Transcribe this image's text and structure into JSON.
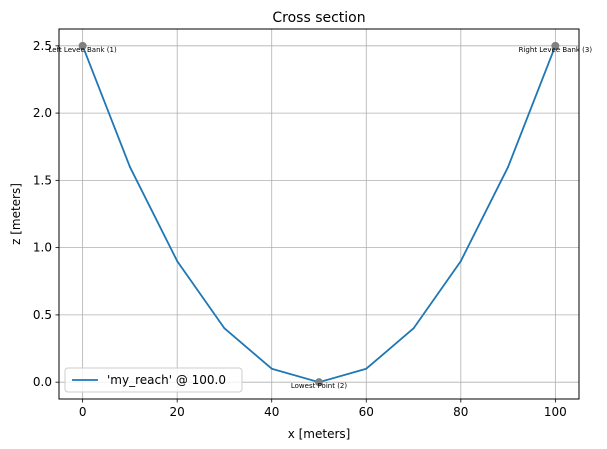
{
  "chart_data": {
    "type": "line",
    "title": "Cross section",
    "xlabel": "x [meters]",
    "ylabel": "z [meters]",
    "xlim": [
      -5,
      105
    ],
    "ylim": [
      -0.125,
      2.625
    ],
    "xticks": [
      0,
      20,
      40,
      60,
      80,
      100
    ],
    "yticks": [
      0.0,
      0.5,
      1.0,
      1.5,
      2.0,
      2.5
    ],
    "xtick_labels": [
      "0",
      "20",
      "40",
      "60",
      "80",
      "100"
    ],
    "ytick_labels": [
      "0.0",
      "0.5",
      "1.0",
      "1.5",
      "2.0",
      "2.5"
    ],
    "grid": true,
    "legend_position": "lower-left",
    "series": [
      {
        "name": "'my_reach' @ 100.0",
        "color": "#1f77b4",
        "x": [
          0,
          10,
          20,
          30,
          40,
          50,
          60,
          70,
          80,
          90,
          100
        ],
        "y": [
          2.5,
          1.6,
          0.9,
          0.4,
          0.1,
          0.0,
          0.1,
          0.4,
          0.9,
          1.6,
          2.5
        ]
      }
    ],
    "points": [
      {
        "x": 0,
        "y": 2.5,
        "label": "Left Levee Bank (1)"
      },
      {
        "x": 50,
        "y": 0.0,
        "label": "Lowest Point (2)"
      },
      {
        "x": 100,
        "y": 2.5,
        "label": "Right Levee Bank (3)"
      }
    ],
    "point_color": "#808080"
  }
}
